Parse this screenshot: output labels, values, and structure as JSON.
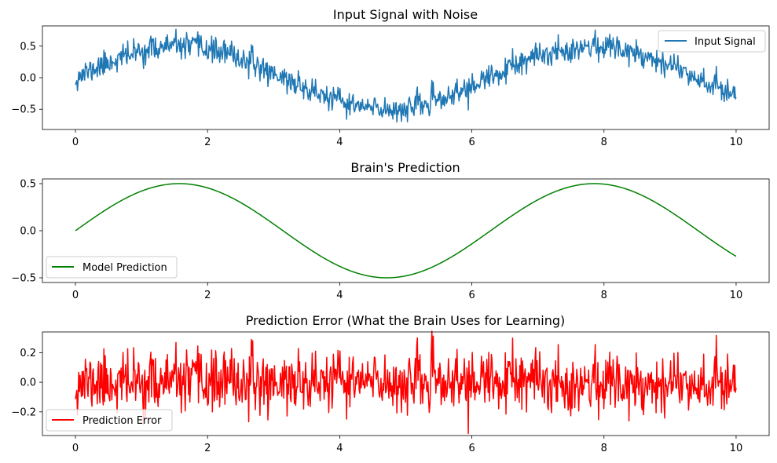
{
  "chart_data": [
    {
      "type": "line",
      "title": "Input Signal with Noise",
      "xlabel": "",
      "ylabel": "",
      "xlim": [
        -0.5,
        10.5
      ],
      "ylim": [
        -0.82,
        0.82
      ],
      "xticks": [
        0,
        2,
        4,
        6,
        8,
        10
      ],
      "yticks": [
        -0.5,
        0.0,
        0.5
      ],
      "ytick_labels": [
        "−0.5",
        "0.0",
        "0.5"
      ],
      "grid": false,
      "legend_position": "top-right",
      "series": [
        {
          "name": "Input Signal",
          "color": "#1f77b4",
          "x_range": [
            0,
            10
          ],
          "n_points": 1000,
          "underlying": "0.5*sin(x)",
          "noise_std": 0.1,
          "noise_seed": 11
        }
      ]
    },
    {
      "type": "line",
      "title": "Brain's Prediction",
      "xlabel": "",
      "ylabel": "",
      "xlim": [
        -0.5,
        10.5
      ],
      "ylim": [
        -0.55,
        0.55
      ],
      "xticks": [
        0,
        2,
        4,
        6,
        8,
        10
      ],
      "yticks": [
        -0.5,
        0.0,
        0.5
      ],
      "ytick_labels": [
        "−0.5",
        "0.0",
        "0.5"
      ],
      "grid": false,
      "legend_position": "bottom-left",
      "series": [
        {
          "name": "Model Prediction",
          "color": "#008000",
          "x_range": [
            0,
            10
          ],
          "n_points": 1000,
          "underlying": "0.5*sin(x)",
          "noise_std": 0,
          "noise_seed": 0
        }
      ]
    },
    {
      "type": "line",
      "title": "Prediction Error (What the Brain Uses for Learning)",
      "xlabel": "",
      "ylabel": "",
      "xlim": [
        -0.5,
        10.5
      ],
      "ylim": [
        -0.36,
        0.34
      ],
      "xticks": [
        0,
        2,
        4,
        6,
        8,
        10
      ],
      "yticks": [
        -0.2,
        0.0,
        0.2
      ],
      "ytick_labels": [
        "−0.2",
        "0.0",
        "0.2"
      ],
      "grid": false,
      "legend_position": "bottom-left",
      "series": [
        {
          "name": "Prediction Error",
          "color": "#ff0000",
          "x_range": [
            0,
            10
          ],
          "n_points": 1000,
          "underlying": "0",
          "noise_std": 0.1,
          "noise_seed": 11
        }
      ]
    }
  ]
}
